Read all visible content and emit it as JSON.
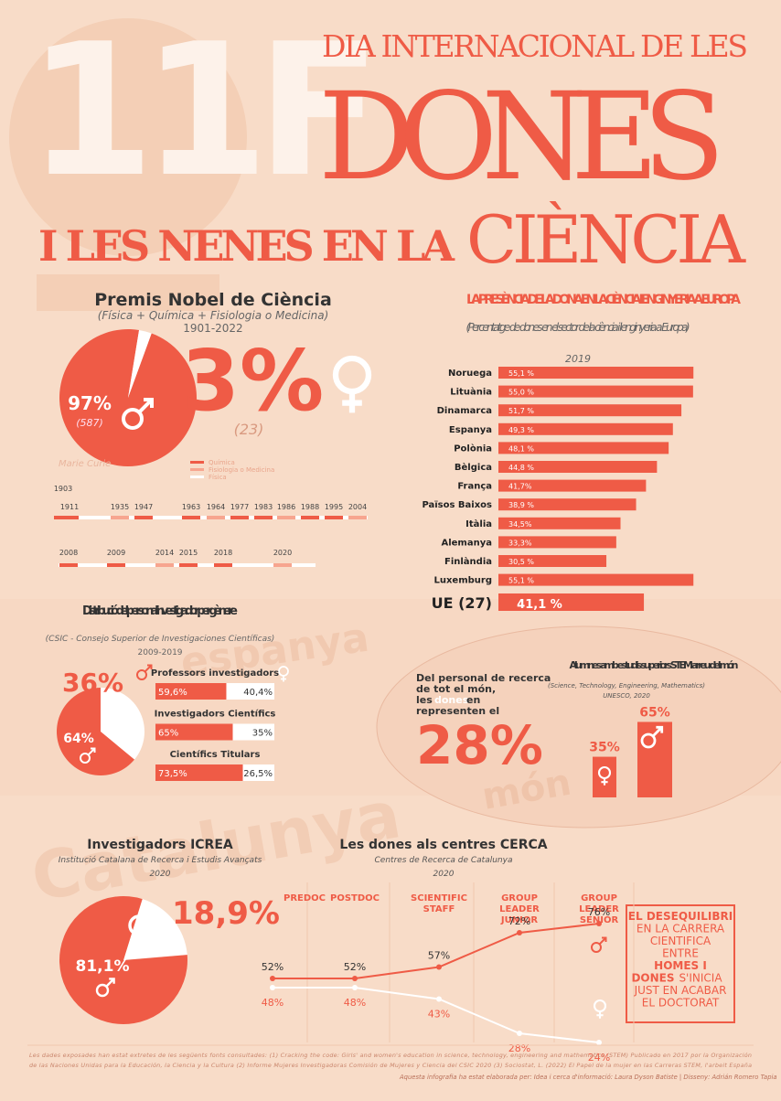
{
  "header": {
    "number": "11F",
    "line1": "DIA INTERNACIONAL DE LES",
    "line2": "DONES",
    "line3a": "I LES NENES EN LA",
    "line3b": "CIÈNCIA"
  },
  "watermarks": [
    "espanya",
    "món",
    "Catalunya"
  ],
  "chart_data": [
    {
      "type": "pie",
      "title": "Premis Nobel de Ciència",
      "subtitle": "(Física + Química + Fisiologia o Medicina)",
      "years": "1901-2022",
      "categories": [
        "Homes",
        "Dones"
      ],
      "values": [
        97,
        3
      ],
      "value_labels": [
        "97%",
        "3%"
      ],
      "counts": [
        587,
        23
      ],
      "count_labels": [
        "(587)",
        "(23)"
      ],
      "legend": [
        "Química",
        "Fisiologia o Medicina",
        "Física"
      ],
      "name": "Marie Curie",
      "timeline": [
        [
          "1903",
          "1911",
          "1935",
          "1947",
          "1963",
          "1964",
          "1977",
          "1983",
          "1986",
          "1988",
          "1995",
          "2004"
        ],
        [
          "2008",
          "2009",
          "2014",
          "2015",
          "2018",
          "2020"
        ]
      ]
    },
    {
      "type": "hbar",
      "title": "LA PRESÈNCIA DE LA DONA EN LA CIÈNCIA I ENGINYERIA A EUROPA",
      "subtitle": "(Percentatge de dones en el sector de la ciència i l'enginyeria a Europa)",
      "year": "2019",
      "color": "#ef5b46",
      "categories": [
        "Noruega",
        "Lituània",
        "Dinamarca",
        "Espanya",
        "Polònia",
        "Bèlgica",
        "França",
        "Països Baixos",
        "Itàlia",
        "Alemanya",
        "Finlàndia",
        "Luxemburg",
        "UE (27)"
      ],
      "values": [
        55.1,
        55.0,
        51.7,
        49.3,
        48.1,
        44.8,
        41.7,
        38.9,
        34.5,
        33.3,
        30.5,
        55.1,
        41.1
      ],
      "value_labels": [
        "55,1 %",
        "55,0 %",
        "51,7 %",
        "49,3 %",
        "48,1 %",
        "44,8 %",
        "41,7%",
        "38,9 %",
        "34,5%",
        "33,3%",
        "30,5 %",
        "55,1 %",
        "41,1 %"
      ]
    },
    {
      "type": "pie",
      "title": "Distribució del personal investigador per gènere",
      "source": "(CSIC - Consejo Superior de Investigaciones Científicas)",
      "years": "2009-2019",
      "categories": [
        "Dones",
        "Homes"
      ],
      "values": [
        36,
        64
      ],
      "value_labels": [
        "36%",
        "64%"
      ],
      "bars": {
        "categories": [
          "Professors investigadors",
          "Investigadors Científics",
          "Científics Titulars"
        ],
        "series": [
          {
            "name": "Homes",
            "color": "#ef5b46",
            "values": [
              59.6,
              65,
              73.5
            ],
            "value_labels": [
              "59,6%",
              "65%",
              "73,5%"
            ]
          },
          {
            "name": "Dones",
            "color": "#ffffff",
            "values": [
              40.4,
              35,
              26.5
            ],
            "value_labels": [
              "40,4%",
              "35%",
              "26,5%"
            ]
          }
        ]
      }
    },
    {
      "type": "bar",
      "text": [
        "Del personal de recerca",
        "de tot el món,",
        "les",
        "dones",
        "en",
        "representen el"
      ],
      "headline": "28%",
      "headline_value": 28,
      "title": "Alumnes amb estudis superiors STEM arreu del món",
      "subtitle": "(Science, Technology, Engineering, Mathematics)",
      "source": "UNESCO, 2020",
      "categories": [
        "Dones",
        "Homes"
      ],
      "values": [
        35,
        65
      ],
      "value_labels": [
        "35%",
        "65%"
      ],
      "color": "#ef5b46"
    },
    {
      "type": "pie",
      "title": "Investigadors ICREA",
      "subtitle": "Institució Catalana de Recerca i Estudis Avançats",
      "year": "2020",
      "categories": [
        "Dones",
        "Homes"
      ],
      "values": [
        18.9,
        81.1
      ],
      "value_labels": [
        "18,9%",
        "81,1%"
      ]
    },
    {
      "type": "line",
      "title": "Les dones als centres CERCA",
      "subtitle": "Centres de Recerca de Catalunya",
      "year": "2020",
      "categories": [
        "PREDOC",
        "POSTDOC",
        "SCIENTIFIC STAFF",
        "GROUP LEADER JUNIOR",
        "GROUP LEADER SENIOR"
      ],
      "series": [
        {
          "name": "Homes",
          "color": "#ef5b46",
          "values": [
            52,
            52,
            57,
            72,
            76
          ],
          "value_labels": [
            "52%",
            "52%",
            "57%",
            "72%",
            "76%"
          ]
        },
        {
          "name": "Dones",
          "color": "#ffffff",
          "values": [
            48,
            48,
            43,
            28,
            24
          ],
          "value_labels": [
            "48%",
            "48%",
            "43%",
            "28%",
            "24%"
          ]
        }
      ]
    }
  ],
  "callout": [
    "EL DESEQUILIBRI",
    "EN LA CARRERA",
    "CIENTIFICA",
    "ENTRE",
    "HOMES I",
    "DONES",
    "S'INICIA",
    "JUST EN ACABAR",
    "EL DOCTORAT"
  ],
  "footer": {
    "sources": [
      "Les dades exposades han estat extretes de les següents fonts consultades: (1) Cracking the code: Girls' and women's education in science, technology, engineering and mathematics (STEM) Publicado en 2017 por la Organización",
      "de las Naciones Unidas para la Educación, la Ciencia y la Cultura (2) Informe Mujeres Investigadoras Comisión de Mujeres y Ciencia del CSIC 2020 (3) Sociostat, L. (2022) El Papel de la mujer en las Carreras STEM, l'arbeit España"
    ],
    "credit": "Aquesta infografia ha estat elaborada per: Idea i cerca d'informació: Laura Dyson Batiste | Disseny: Adrián Romero Tapia"
  }
}
